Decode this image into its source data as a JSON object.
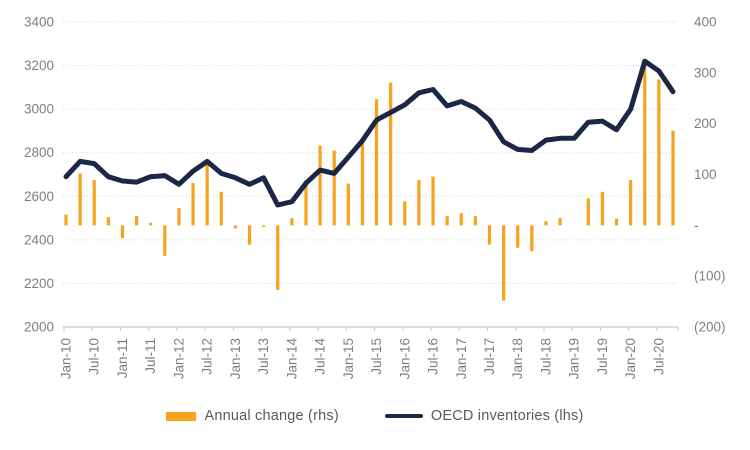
{
  "chart_data": {
    "type": "combo-bar-line",
    "title": "",
    "x_categories": [
      "Jan-10",
      "Apr-10",
      "Jul-10",
      "Oct-10",
      "Jan-11",
      "Apr-11",
      "Jul-11",
      "Oct-11",
      "Jan-12",
      "Apr-12",
      "Jul-12",
      "Oct-12",
      "Jan-13",
      "Apr-13",
      "Jul-13",
      "Oct-13",
      "Jan-14",
      "Apr-14",
      "Jul-14",
      "Oct-14",
      "Jan-15",
      "Apr-15",
      "Jul-15",
      "Oct-15",
      "Jan-16",
      "Apr-16",
      "Jul-16",
      "Oct-16",
      "Jan-17",
      "Apr-17",
      "Jul-17",
      "Oct-17",
      "Jan-18",
      "Apr-18",
      "Jul-18",
      "Oct-18",
      "Jan-19",
      "Apr-19",
      "Jul-19",
      "Oct-19",
      "Jan-20",
      "Apr-20",
      "Jul-20",
      "Oct-20"
    ],
    "x_tick_labels": [
      "Jan-10",
      "Jul-10",
      "Jan-11",
      "Jul-11",
      "Jan-12",
      "Jul-12",
      "Jan-13",
      "Jul-13",
      "Jan-14",
      "Jul-14",
      "Jan-15",
      "Jul-15",
      "Jan-16",
      "Jul-16",
      "Jan-17",
      "Jul-17",
      "Jan-18",
      "Jul-18",
      "Jan-19",
      "Jul-19",
      "Jan-20",
      "Jul-20"
    ],
    "series": [
      {
        "name": "Annual change (rhs)",
        "type": "bar",
        "axis": "right",
        "color": "#F7A21C",
        "values": [
          21,
          102,
          89,
          16,
          -25,
          18,
          5,
          -60,
          34,
          83,
          130,
          66,
          -6,
          -38,
          -3,
          -127,
          14,
          89,
          157,
          147,
          82,
          170,
          248,
          281,
          47,
          89,
          96,
          18,
          24,
          18,
          -38,
          -148,
          -44,
          -51,
          8,
          14,
          0,
          53,
          66,
          13,
          89,
          316,
          287,
          186
        ]
      },
      {
        "name": "OECD inventories (lhs)",
        "type": "line",
        "axis": "left",
        "color": "#1B2747",
        "values": [
          2690,
          2760,
          2750,
          2690,
          2670,
          2665,
          2690,
          2695,
          2655,
          2715,
          2760,
          2705,
          2685,
          2655,
          2685,
          2560,
          2575,
          2660,
          2720,
          2705,
          2780,
          2855,
          2950,
          2985,
          3020,
          3075,
          3090,
          3015,
          3035,
          3005,
          2950,
          2850,
          2815,
          2810,
          2858,
          2866,
          2866,
          2940,
          2945,
          2905,
          3000,
          3220,
          3175,
          3080
        ]
      }
    ],
    "left_axis": {
      "min": 2000,
      "max": 3400,
      "step": 200,
      "tick_labels": [
        "3400",
        "3200",
        "3000",
        "2800",
        "2600",
        "2400",
        "2200",
        "2000"
      ]
    },
    "right_axis": {
      "min": -200,
      "max": 400,
      "step": 100,
      "tick_labels": [
        "400",
        "300",
        "200",
        "100",
        "-",
        "(100)",
        "(200)"
      ]
    },
    "legend": [
      "Annual change (rhs)",
      "OECD inventories (lhs)"
    ],
    "grid": true,
    "legend_position": "bottom"
  },
  "colors": {
    "bar": "#F7A21C",
    "line": "#1B2747",
    "grid": "#D6D6D6",
    "axis": "#C9C9C9",
    "tick_text": "#7F7F7F",
    "legend_text": "#595959",
    "background": "#FFFFFF"
  }
}
